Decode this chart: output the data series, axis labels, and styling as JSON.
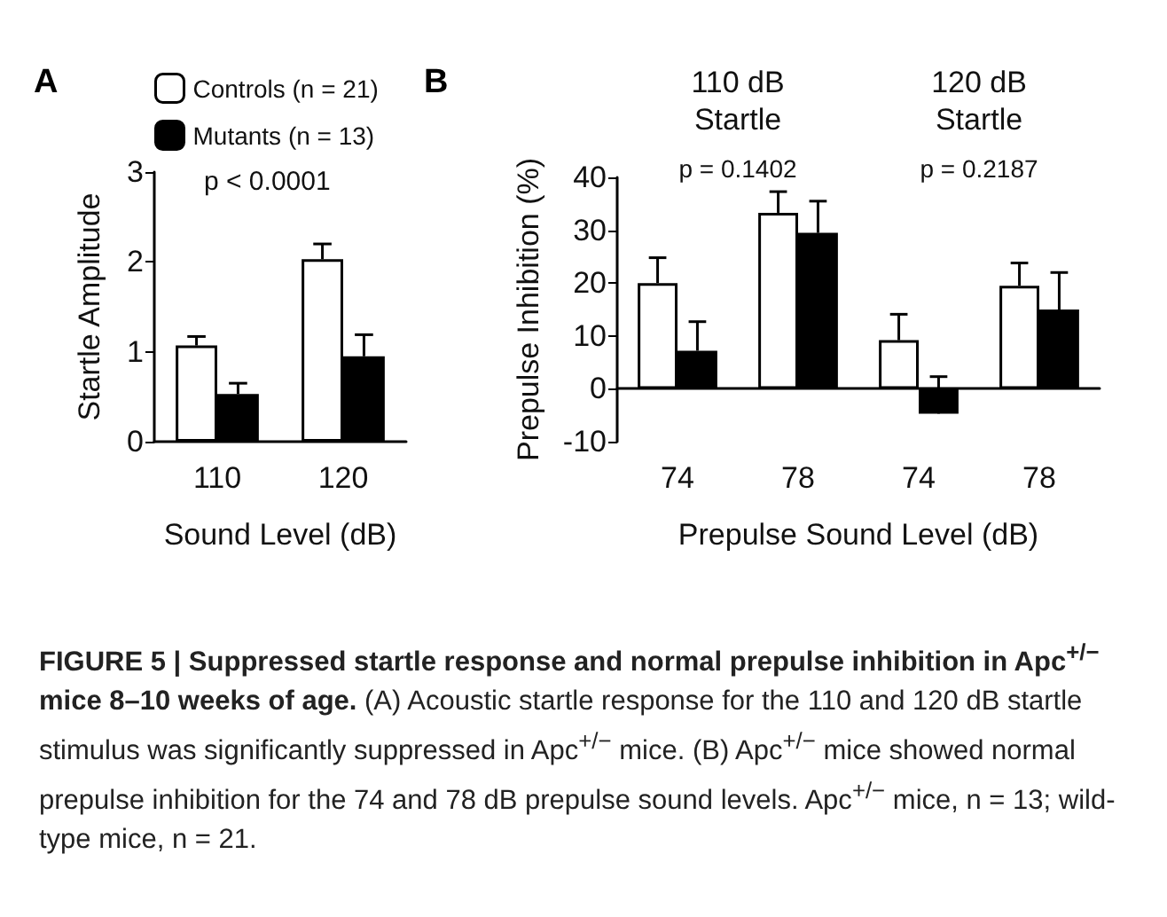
{
  "chart_data": [
    {
      "type": "bar",
      "title": "A",
      "ylabel": "Startle Amplitude",
      "xlabel": "Sound Level (dB)",
      "categories": [
        "110",
        "120"
      ],
      "series": [
        {
          "name": "Controls (n = 21)",
          "color": "#ffffff",
          "values": [
            1.07,
            2.03
          ],
          "errors": [
            [
              1.07,
              1.17
            ],
            [
              2.03,
              2.2
            ]
          ]
        },
        {
          "name": "Mutants (n = 13)",
          "color": "#000000",
          "values": [
            0.53,
            0.95
          ],
          "errors": [
            [
              0.53,
              0.65
            ],
            [
              0.95,
              1.19
            ]
          ]
        }
      ],
      "ylim": [
        0,
        3
      ],
      "yticks": [
        0,
        1,
        2,
        3
      ],
      "grid": false,
      "legend": "top",
      "annotations": [
        "p < 0.0001"
      ]
    },
    {
      "type": "bar",
      "title": "B",
      "ylabel": "Prepulse Inhibition (%)",
      "xlabel": "Prepulse Sound Level (dB)",
      "categories": [
        "74",
        "78",
        "74",
        "78"
      ],
      "series": [
        {
          "color": "#ffffff",
          "values": [
            20,
            33.3,
            9.2,
            19.5
          ],
          "errors": [
            [
              20,
              24.8
            ],
            [
              33.3,
              37.3
            ],
            [
              9.2,
              14.1
            ],
            [
              19.5,
              23.8
            ]
          ]
        },
        {
          "color": "#000000",
          "values": [
            7.2,
            29.5,
            -4.7,
            15
          ],
          "errors": [
            [
              7.2,
              12.7
            ],
            [
              29.5,
              35.5
            ],
            [
              -4.7,
              2.3
            ],
            [
              15,
              22
            ]
          ]
        }
      ],
      "ylim": [
        -10,
        40
      ],
      "yticks": [
        -10,
        0,
        10,
        20,
        30,
        40
      ],
      "grid": false,
      "annotations": [
        "110 dB\nStartle",
        "120 dB\nStartle",
        "p = 0.1402",
        "p = 0.2187"
      ]
    },
    {
      "type": "other",
      "title": "FIGURE 5 | Suppressed startle response and normal prepulse inhibition in Apc$^{+/−}$ mice 8–10 weeks of age.",
      "annotations": [
        "(A) Acoustic startle response for the 110 and 120 dB startle stimulus was significantly suppressed in Apc$^{+/−}$ mice.",
        "(B) Apc$^{+/−}$ mice showed normal prepulse inhibition for the 74 and 78 dB prepulse sound levels. Apc$^{+/−}$ mice, n = 13; wild-type mice, n = 21."
      ]
    }
  ]
}
